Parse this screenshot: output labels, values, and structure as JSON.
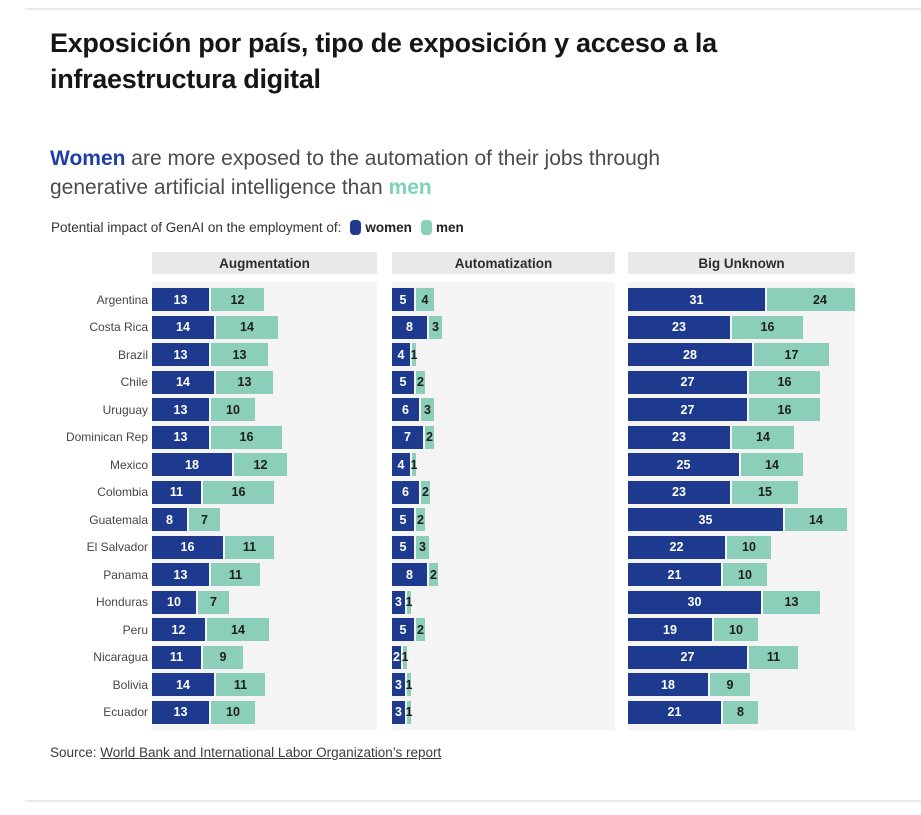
{
  "header": {
    "title": "Exposición por país, tipo de exposición y acceso a la infraestructura digital"
  },
  "headline": {
    "women": "Women",
    "middle": " are more exposed to the automation of their jobs through generative artificial intelligence than ",
    "men": "men"
  },
  "legend": {
    "label": "Potential impact of GenAI on the employment of:",
    "women_label": "women",
    "men_label": "men"
  },
  "colors": {
    "women_bar": "#1e3a8f",
    "men_bar": "#8bcfba",
    "women_headline": "#1e3fa6",
    "men_headline": "#7fd2b8",
    "panel_header_bg": "#e9e9e9",
    "panel_body_bg": "#f4f4f4"
  },
  "source": {
    "prefix": "Source: ",
    "link": "World Bank and International Labor Organization’s report"
  },
  "chart_data": {
    "type": "bar",
    "variant": "horizontal-stacked-small-multiples",
    "panels": [
      "Augmentation",
      "Automatization",
      "Big Unknown"
    ],
    "series": [
      "women",
      "men"
    ],
    "legend_position": "top",
    "grid": false,
    "countries": [
      "Argentina",
      "Costa Rica",
      "Brazil",
      "Chile",
      "Uruguay",
      "Dominican Rep",
      "Mexico",
      "Colombia",
      "Guatemala",
      "El Salvador",
      "Panama",
      "Honduras",
      "Peru",
      "Nicaragua",
      "Bolivia",
      "Ecuador"
    ],
    "values": {
      "Augmentation": [
        [
          13,
          12
        ],
        [
          14,
          14
        ],
        [
          13,
          13
        ],
        [
          14,
          13
        ],
        [
          13,
          10
        ],
        [
          13,
          16
        ],
        [
          18,
          12
        ],
        [
          11,
          16
        ],
        [
          8,
          7
        ],
        [
          16,
          11
        ],
        [
          13,
          11
        ],
        [
          10,
          7
        ],
        [
          12,
          14
        ],
        [
          11,
          9
        ],
        [
          14,
          11
        ],
        [
          13,
          10
        ]
      ],
      "Automatization": [
        [
          5,
          4
        ],
        [
          8,
          3
        ],
        [
          4,
          1
        ],
        [
          5,
          2
        ],
        [
          6,
          3
        ],
        [
          7,
          2
        ],
        [
          4,
          1
        ],
        [
          6,
          2
        ],
        [
          5,
          2
        ],
        [
          5,
          3
        ],
        [
          8,
          2
        ],
        [
          3,
          1
        ],
        [
          5,
          2
        ],
        [
          2,
          1
        ],
        [
          3,
          1
        ],
        [
          3,
          1
        ]
      ],
      "Big Unknown": [
        [
          31,
          24
        ],
        [
          23,
          16
        ],
        [
          28,
          17
        ],
        [
          27,
          16
        ],
        [
          27,
          16
        ],
        [
          23,
          14
        ],
        [
          25,
          14
        ],
        [
          23,
          15
        ],
        [
          35,
          14
        ],
        [
          22,
          10
        ],
        [
          21,
          10
        ],
        [
          30,
          13
        ],
        [
          19,
          10
        ],
        [
          27,
          11
        ],
        [
          18,
          9
        ],
        [
          21,
          8
        ]
      ]
    }
  }
}
